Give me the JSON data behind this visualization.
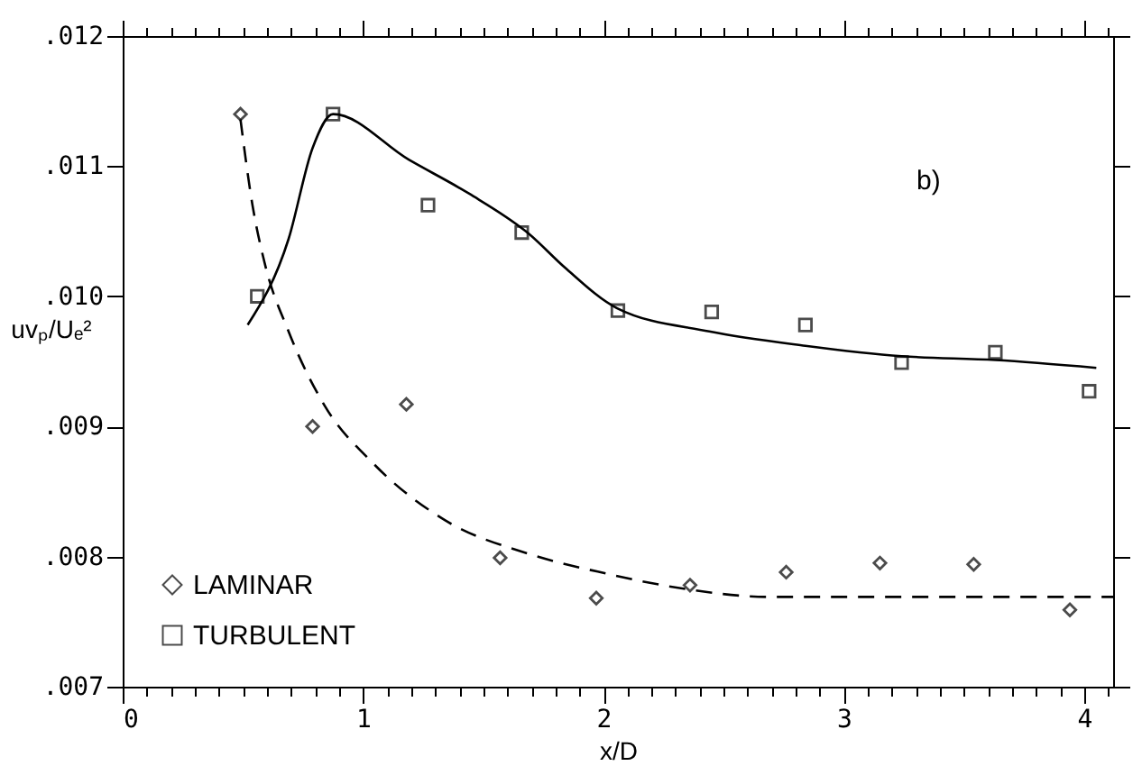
{
  "chart_data": {
    "type": "scatter",
    "xlabel": "x/D",
    "ylabel": "uvₚ/Uₑ²",
    "annotations": [
      "b)"
    ],
    "xlim": [
      0,
      4.12
    ],
    "ylim": [
      0.007,
      0.012
    ],
    "xticks": [
      0,
      {
        "value": 0.1,
        "label": null
      },
      {
        "value": 0.2,
        "label": null
      },
      {
        "value": 0.3,
        "label": null
      },
      {
        "value": 0.4,
        "label": null
      },
      {
        "value": 0.5,
        "label": null
      },
      {
        "value": 0.6,
        "label": null
      },
      {
        "value": 0.7,
        "label": null
      },
      {
        "value": 0.8,
        "label": null
      },
      {
        "value": 0.9,
        "label": null
      },
      1,
      {
        "value": 1.1,
        "label": null
      },
      {
        "value": 1.2,
        "label": null
      },
      {
        "value": 1.3,
        "label": null
      },
      {
        "value": 1.4,
        "label": null
      },
      {
        "value": 1.5,
        "label": null
      },
      {
        "value": 1.6,
        "label": null
      },
      {
        "value": 1.7,
        "label": null
      },
      {
        "value": 1.8,
        "label": null
      },
      {
        "value": 1.9,
        "label": null
      },
      2,
      {
        "value": 2.1,
        "label": null
      },
      {
        "value": 2.2,
        "label": null
      },
      {
        "value": 2.3,
        "label": null
      },
      {
        "value": 2.4,
        "label": null
      },
      {
        "value": 2.5,
        "label": null
      },
      {
        "value": 2.6,
        "label": null
      },
      {
        "value": 2.7,
        "label": null
      },
      {
        "value": 2.8,
        "label": null
      },
      {
        "value": 2.9,
        "label": null
      },
      3,
      {
        "value": 3.1,
        "label": null
      },
      {
        "value": 3.2,
        "label": null
      },
      {
        "value": 3.3,
        "label": null
      },
      {
        "value": 3.4,
        "label": null
      },
      {
        "value": 3.5,
        "label": null
      },
      {
        "value": 3.6,
        "label": null
      },
      {
        "value": 3.7,
        "label": null
      },
      {
        "value": 3.8,
        "label": null
      },
      {
        "value": 3.9,
        "label": null
      },
      4,
      {
        "value": 4.1,
        "label": null
      }
    ],
    "yticks": [
      {
        "value": 0.007,
        "label": ".007"
      },
      {
        "value": 0.008,
        "label": ".008"
      },
      {
        "value": 0.009,
        "label": ".009"
      },
      {
        "value": 0.01,
        "label": ".010"
      },
      {
        "value": 0.011,
        "label": ".011"
      },
      {
        "value": 0.012,
        "label": ".012"
      }
    ],
    "grid": false,
    "legend": "bottom left",
    "series": [
      {
        "name": "LAMINAR",
        "marker": "diamond",
        "color": "#000000",
        "x": [
          0.49,
          0.79,
          1.18,
          1.57,
          1.97,
          2.36,
          2.76,
          3.15,
          3.54,
          3.94
        ],
        "values": [
          0.0114,
          0.009,
          0.00917,
          0.00799,
          0.00768,
          0.00778,
          0.00788,
          0.00795,
          0.00794,
          0.00759
        ]
      },
      {
        "name": "TURBULENT",
        "marker": "square",
        "color": "#000000",
        "x": [
          0.56,
          0.875,
          1.27,
          1.66,
          2.06,
          2.45,
          2.84,
          3.24,
          3.63,
          4.02
        ],
        "values": [
          0.01,
          0.0114,
          0.0107,
          0.01049,
          0.00989,
          0.00988,
          0.00978,
          0.00949,
          0.00957,
          0.00927
        ]
      },
      {
        "type": "line",
        "line_style": "dashed",
        "color": "#000000",
        "x": [
          0.49,
          0.54,
          0.59,
          0.69,
          0.84,
          1.04,
          1.34,
          1.69,
          2.01,
          2.31,
          2.69,
          3.19,
          4.12
        ],
        "values": [
          0.01136,
          0.0107,
          0.01026,
          0.00973,
          0.00916,
          0.00872,
          0.00828,
          0.00802,
          0.00787,
          0.00776,
          0.00769,
          0.00769,
          0.00769
        ]
      },
      {
        "type": "line",
        "line_style": "solid",
        "color": "#000000",
        "x": [
          0.52,
          0.69,
          0.79,
          0.875,
          1.19,
          1.44,
          1.69,
          1.84,
          2.055,
          2.44,
          2.84,
          3.24,
          3.63,
          4.05
        ],
        "values": [
          0.00978,
          0.01044,
          0.01114,
          0.0114,
          0.01105,
          0.01079,
          0.01048,
          0.01022,
          0.00991,
          0.00973,
          0.00962,
          0.00954,
          0.00951,
          0.00945
        ]
      }
    ]
  }
}
